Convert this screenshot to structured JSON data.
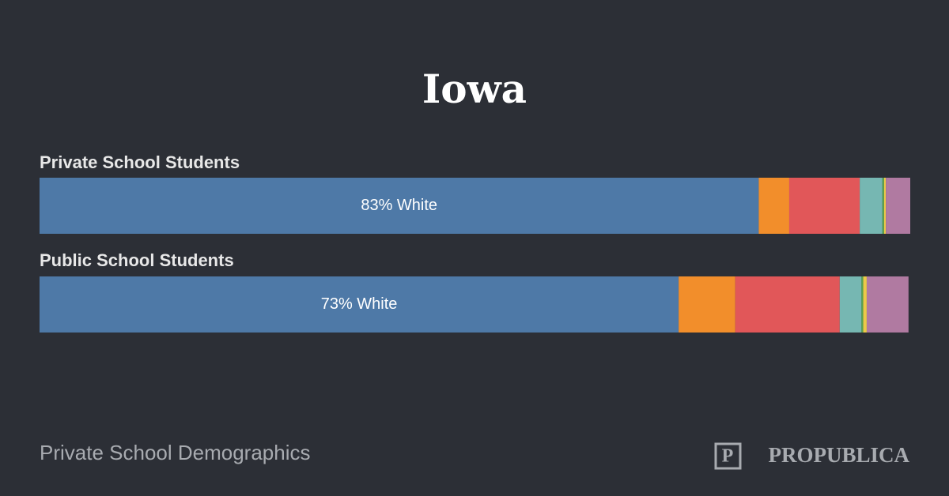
{
  "chart_data": {
    "type": "stacked-bar",
    "title": "Iowa",
    "categories": [
      "Private School Students",
      "Public School Students"
    ],
    "xlim": [
      0,
      100
    ],
    "series": [
      {
        "color": "#4e79a7",
        "values": [
          82.6,
          73.4
        ],
        "value_labels": [
          "83% White",
          "73% White"
        ]
      },
      {
        "color": "#f28e2b",
        "values": [
          3.5,
          6.5
        ]
      },
      {
        "color": "#e15759",
        "values": [
          8.1,
          12.0
        ]
      },
      {
        "color": "#76b7b2",
        "values": [
          2.6,
          2.5
        ]
      },
      {
        "color": "#59a14f",
        "values": [
          0.2,
          0.2
        ]
      },
      {
        "color": "#edc948",
        "values": [
          0.2,
          0.4
        ]
      },
      {
        "color": "#b07aa1",
        "values": [
          2.8,
          4.8
        ]
      }
    ]
  },
  "footer": {
    "source": "Private School Demographics",
    "logo": "PROPUBLICA"
  }
}
